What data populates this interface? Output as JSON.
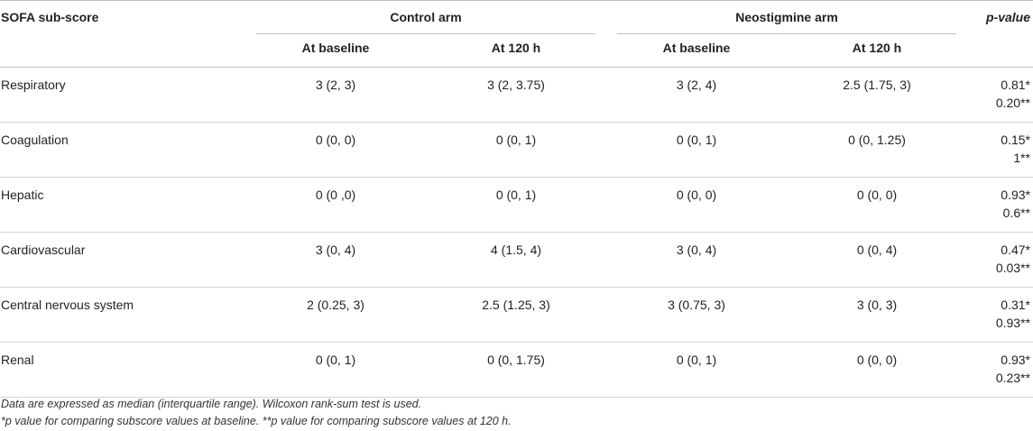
{
  "table": {
    "header": {
      "row_label": "SOFA sub-score",
      "control_arm": "Control arm",
      "neostigmine_arm": "Neostigmine arm",
      "p_value": "p-value",
      "control_baseline": "At baseline",
      "control_120h": "At 120 h",
      "neo_baseline": "At baseline",
      "neo_120h": "At 120 h"
    },
    "rows": [
      {
        "label": "Respiratory",
        "c_base": "3 (2, 3)",
        "c_120": "3 (2, 3.75)",
        "n_base": "3 (2, 4)",
        "n_120": "2.5 (1.75, 3)",
        "p1": "0.81*",
        "p2": "0.20**"
      },
      {
        "label": "Coagulation",
        "c_base": "0 (0, 0)",
        "c_120": "0 (0, 1)",
        "n_base": "0 (0, 1)",
        "n_120": "0 (0, 1.25)",
        "p1": "0.15*",
        "p2": "1**"
      },
      {
        "label": "Hepatic",
        "c_base": "0 (0 ,0)",
        "c_120": "0 (0, 1)",
        "n_base": "0 (0, 0)",
        "n_120": "0 (0, 0)",
        "p1": "0.93*",
        "p2": "0.6**"
      },
      {
        "label": "Cardiovascular",
        "c_base": "3 (0, 4)",
        "c_120": "4 (1.5, 4)",
        "n_base": "3 (0, 4)",
        "n_120": "0 (0, 4)",
        "p1": "0.47*",
        "p2": "0.03**"
      },
      {
        "label": "Central nervous system",
        "c_base": "2 (0.25, 3)",
        "c_120": "2.5 (1.25, 3)",
        "n_base": "3 (0.75, 3)",
        "n_120": "3 (0, 3)",
        "p1": "0.31*",
        "p2": "0.93**"
      },
      {
        "label": "Renal",
        "c_base": "0 (0, 1)",
        "c_120": "0 (0, 1.75)",
        "n_base": "0 (0, 1)",
        "n_120": "0 (0, 0)",
        "p1": "0.93*",
        "p2": "0.23**"
      }
    ]
  },
  "footnotes": {
    "line1": "Data are expressed as median (interquartile range). Wilcoxon rank-sum test is used.",
    "line2": "*p value for comparing subscore values at baseline. **p value for comparing subscore values at 120 h."
  }
}
